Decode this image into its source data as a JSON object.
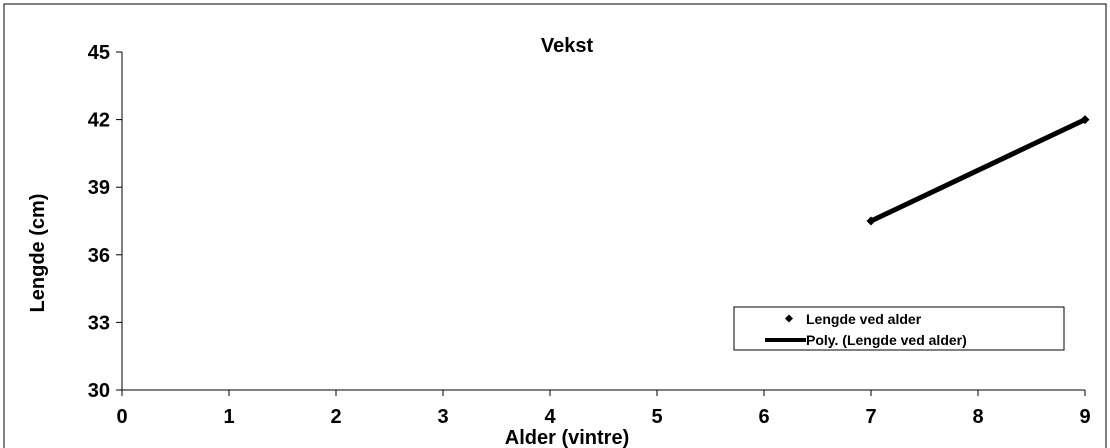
{
  "chart_data": {
    "type": "scatter",
    "title": "Vekst",
    "xlabel": "Alder (vintre)",
    "ylabel": "Lengde (cm)",
    "xlim": [
      0,
      9
    ],
    "ylim": [
      30,
      45
    ],
    "x_ticks": [
      0,
      1,
      2,
      3,
      4,
      5,
      6,
      7,
      8,
      9
    ],
    "y_ticks": [
      30,
      33,
      36,
      39,
      42,
      45
    ],
    "grid": false,
    "legend_position": "bottom-right",
    "series": [
      {
        "name": "Lengde ved alder",
        "kind": "points",
        "marker": "diamond",
        "color": "#000000",
        "x": [
          7,
          9
        ],
        "y": [
          37.5,
          42.0
        ]
      },
      {
        "name": "Poly. (Lengde ved alder)",
        "kind": "trendline",
        "color": "#000000",
        "x": [
          7,
          9
        ],
        "y": [
          37.5,
          42.0
        ]
      }
    ]
  }
}
